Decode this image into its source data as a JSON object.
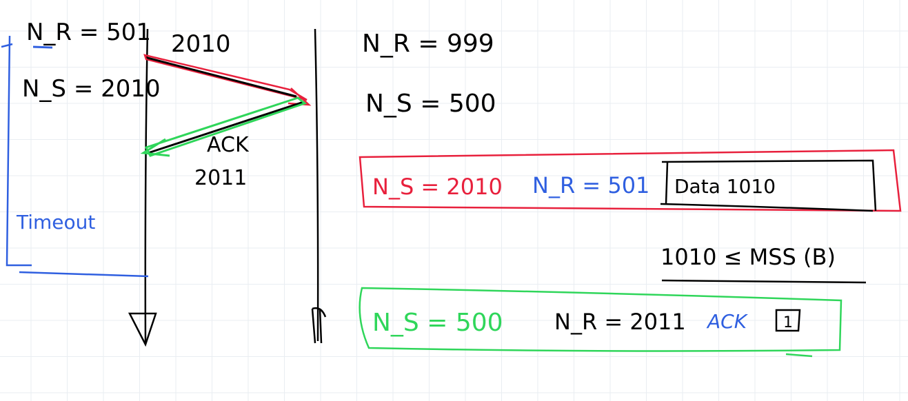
{
  "sender": {
    "nr": "N_R = 501",
    "ns": "N_S = 2010",
    "timeout": "Timeout"
  },
  "receiver": {
    "nr": "N_R = 999",
    "ns": "N_S = 500"
  },
  "segment_send": {
    "seq": "2010"
  },
  "segment_ack": {
    "label": "ACK",
    "number": "2011"
  },
  "red_box": {
    "ns": "N_S = 2010",
    "nr": "N_R = 501",
    "data": "Data 1010"
  },
  "mss_note": "1010 ≤ MSS (B)",
  "green_box": {
    "ns": "N_S = 500",
    "nr": "N_R = 2011",
    "ack": "ACK",
    "flag": "1"
  },
  "colors": {
    "ink": "#000000",
    "red": "#e8203c",
    "green": "#2fd65a",
    "blue": "#2f5fe0",
    "grid": "#e9edf2"
  }
}
